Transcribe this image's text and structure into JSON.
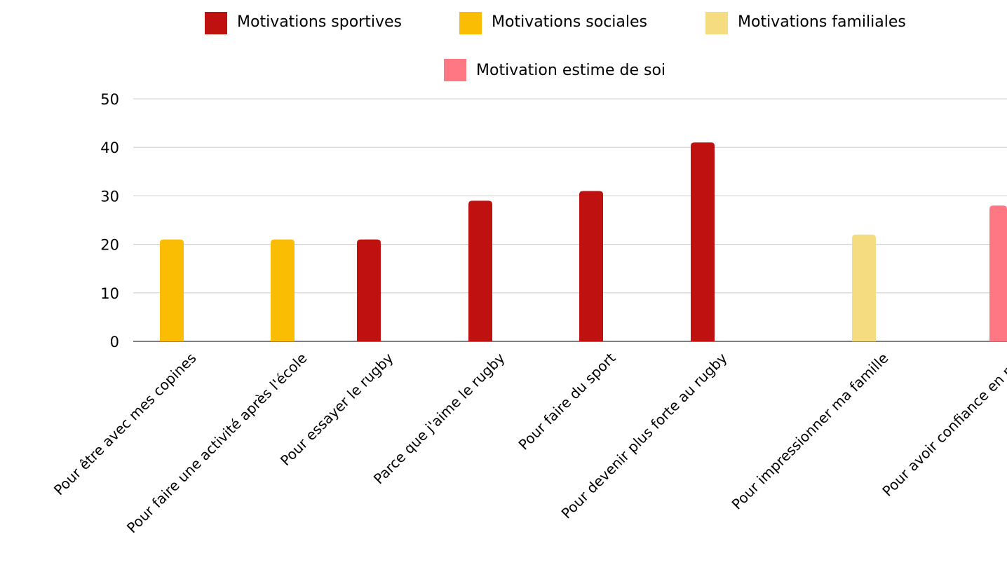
{
  "chart_data": {
    "type": "bar",
    "title": "",
    "xlabel": "",
    "ylabel": "",
    "ylim": [
      0,
      50
    ],
    "yticks": [
      0,
      10,
      20,
      30,
      40,
      50
    ],
    "grid": true,
    "legend_position": "top",
    "categories": [
      "Pour être avec mes copines",
      "Pour faire une activité après l'école",
      "Pour essayer le rugby",
      "Parce que j'aime le rugby",
      "Pour faire du sport",
      "Pour devenir plus forte au rugby",
      "Pour impressionner ma famille",
      "Pour avoir confiance en moi"
    ],
    "series": [
      {
        "name": "Motivations sportives",
        "color": "#c01111",
        "values": [
          null,
          null,
          21,
          29,
          31,
          41,
          null,
          null
        ]
      },
      {
        "name": "Motivations sociales",
        "color": "#fbbc04",
        "values": [
          21,
          21,
          null,
          null,
          null,
          null,
          null,
          null
        ]
      },
      {
        "name": "Motivations familiales",
        "color": "#f6dc80",
        "values": [
          null,
          null,
          null,
          null,
          null,
          null,
          22,
          null
        ]
      },
      {
        "name": "Motivation estime de soi",
        "color": "#ff7782",
        "values": [
          null,
          null,
          null,
          null,
          null,
          null,
          null,
          28
        ]
      }
    ]
  }
}
